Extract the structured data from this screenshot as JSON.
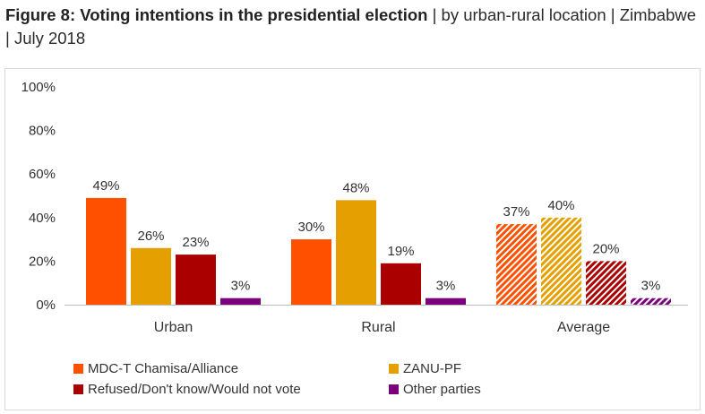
{
  "title": {
    "bold": "Figure 8: Voting intentions in the presidential election",
    "rest": " | by urban-rural location | Zimbabwe | July 2018"
  },
  "chart_data": {
    "type": "bar",
    "categories": [
      "Urban",
      "Rural",
      "Average"
    ],
    "series": [
      {
        "name": "MDC-T Chamisa/Alliance",
        "color": "#ff5000",
        "values": [
          49,
          30,
          37
        ],
        "labels": [
          "49%",
          "30%",
          "37%"
        ]
      },
      {
        "name": "ZANU-PF",
        "color": "#e5a000",
        "values": [
          26,
          48,
          40
        ],
        "labels": [
          "26%",
          "48%",
          "40%"
        ]
      },
      {
        "name": "Refused/Don't know/Would not vote",
        "color": "#aa0000",
        "values": [
          23,
          19,
          20
        ],
        "labels": [
          "23%",
          "19%",
          "20%"
        ]
      },
      {
        "name": "Other parties",
        "color": "#7b007b",
        "values": [
          3,
          3,
          3
        ],
        "labels": [
          "3%",
          "3%",
          "3%"
        ]
      }
    ],
    "hatched_categories": [
      "Average"
    ],
    "ylim": [
      0,
      100
    ],
    "yticks": [
      "0%",
      "20%",
      "40%",
      "60%",
      "80%",
      "100%"
    ],
    "legend_position": "bottom",
    "grid": false
  }
}
